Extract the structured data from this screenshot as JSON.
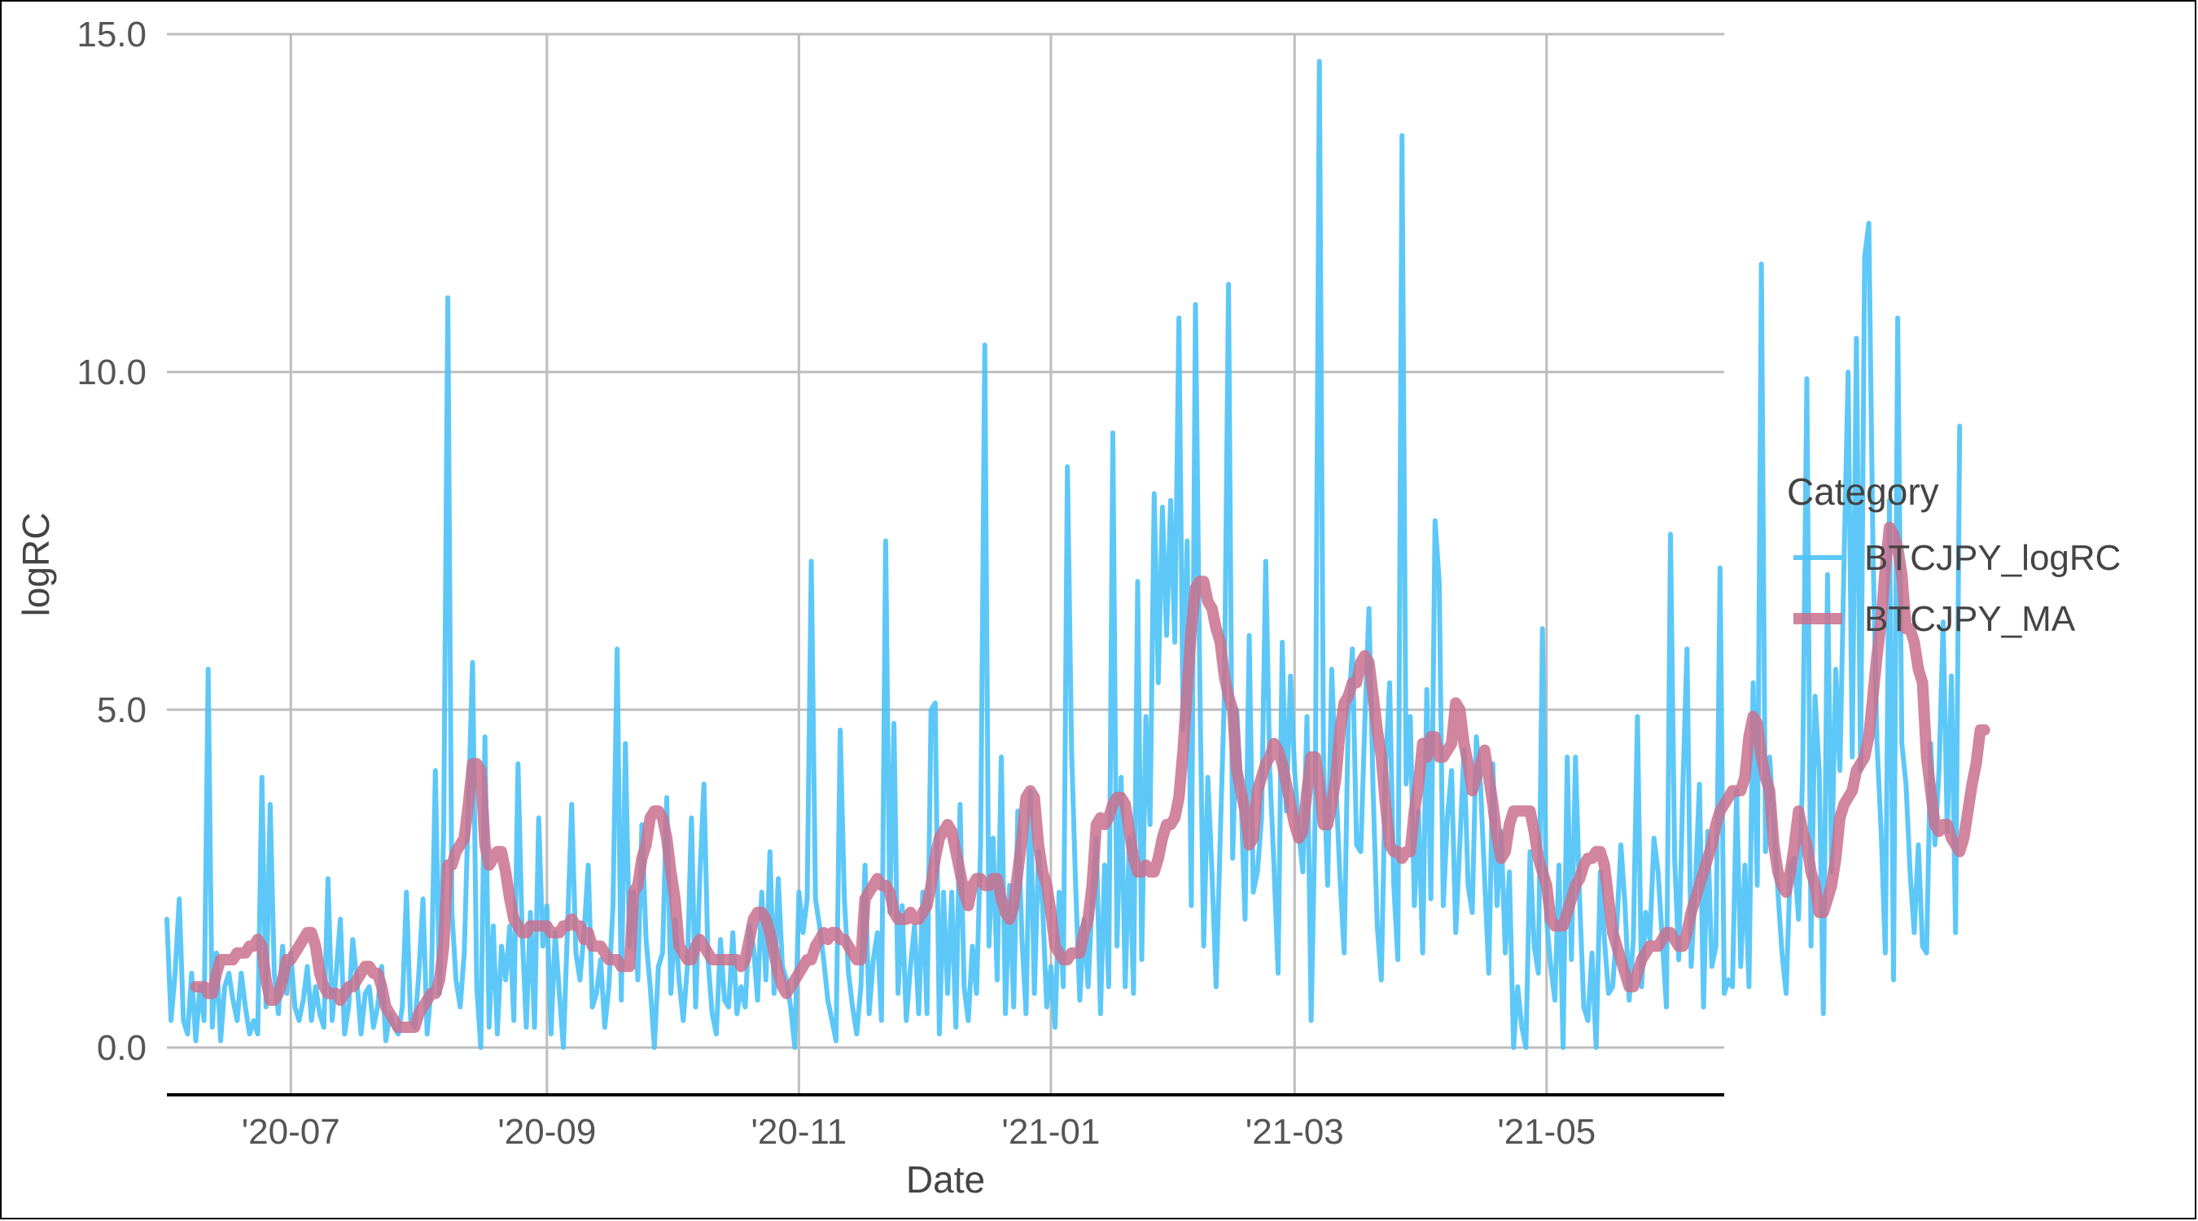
{
  "chart_data": {
    "type": "line",
    "xlabel": "Date",
    "ylabel": "logRC",
    "xlim": [
      "2020-06-01",
      "2021-06-13"
    ],
    "ylim": [
      -0.7,
      15.0
    ],
    "grid": true,
    "legend_position": "right",
    "legend_title": "Category",
    "x_ticks": [
      "2020-07-01",
      "2020-09-01",
      "2020-11-01",
      "2021-01-01",
      "2021-03-01",
      "2021-05-01"
    ],
    "x_tick_labels": [
      "'20-07",
      "'20-09",
      "'20-11",
      "'21-01",
      "'21-03",
      "'21-05"
    ],
    "y_ticks": [
      0.0,
      5.0,
      10.0,
      15.0
    ],
    "y_tick_labels": [
      "0.0",
      "5.0",
      "10.0",
      "15.0"
    ],
    "series": [
      {
        "name": "BTCJPY_logRC",
        "color": "#4FC3F7",
        "line_width": "thin",
        "x_start": "2020-06-01",
        "x_step_days": 1,
        "values": [
          1.9,
          0.4,
          1.1,
          2.2,
          0.4,
          0.2,
          1.1,
          0.1,
          0.9,
          0.4,
          5.6,
          0.3,
          1.4,
          0.1,
          0.9,
          1.1,
          0.7,
          0.4,
          1.1,
          0.6,
          0.2,
          0.4,
          0.2,
          4.0,
          0.6,
          3.6,
          1.1,
          0.5,
          1.5,
          0.8,
          1.4,
          0.6,
          0.4,
          0.7,
          1.2,
          0.4,
          0.9,
          0.5,
          0.3,
          2.5,
          0.4,
          1.1,
          1.9,
          0.2,
          0.6,
          1.6,
          1.0,
          0.2,
          0.8,
          0.9,
          0.3,
          0.6,
          1.2,
          0.1,
          0.5,
          0.3,
          0.2,
          0.6,
          2.3,
          0.4,
          0.3,
          1.1,
          2.2,
          0.2,
          0.9,
          4.1,
          0.8,
          3.2,
          11.1,
          2.0,
          1.0,
          0.6,
          1.4,
          3.6,
          5.7,
          0.9,
          0.0,
          4.6,
          0.3,
          1.8,
          0.2,
          1.5,
          1.0,
          1.8,
          0.4,
          4.2,
          1.7,
          0.3,
          2.0,
          0.3,
          3.4,
          1.5,
          2.1,
          0.2,
          1.7,
          0.8,
          0.0,
          1.8,
          3.6,
          1.4,
          1.0,
          1.7,
          2.7,
          0.6,
          0.8,
          1.3,
          0.3,
          0.9,
          2.1,
          5.9,
          0.7,
          4.5,
          1.5,
          2.3,
          1.0,
          3.3,
          1.6,
          0.9,
          0.0,
          1.2,
          1.4,
          3.7,
          0.8,
          1.9,
          1.0,
          0.4,
          1.2,
          3.4,
          0.6,
          2.5,
          3.9,
          1.3,
          0.5,
          0.2,
          1.6,
          0.7,
          0.6,
          1.7,
          0.5,
          0.9,
          0.6,
          1.8,
          1.5,
          0.7,
          2.3,
          1.0,
          2.9,
          0.8,
          2.5,
          1.2,
          1.0,
          0.6,
          0.0,
          2.3,
          1.7,
          2.2,
          7.2,
          2.2,
          1.8,
          1.3,
          0.7,
          0.4,
          0.1,
          4.7,
          2.2,
          1.1,
          0.6,
          0.2,
          0.9,
          2.7,
          0.5,
          1.3,
          1.7,
          0.4,
          7.5,
          2.0,
          4.8,
          0.8,
          2.1,
          0.4,
          1.2,
          1.8,
          0.5,
          2.3,
          0.5,
          5.0,
          5.1,
          0.2,
          2.3,
          0.8,
          2.3,
          0.3,
          3.6,
          0.9,
          0.4,
          1.5,
          0.8,
          3.0,
          10.4,
          1.5,
          3.1,
          1.0,
          4.3,
          0.5,
          2.4,
          0.6,
          3.5,
          1.6,
          0.5,
          3.8,
          0.8,
          2.9,
          2.1,
          0.6,
          1.2,
          0.3,
          2.3,
          0.9,
          8.6,
          4.4,
          2.4,
          0.7,
          1.9,
          0.9,
          2.2,
          3.1,
          0.5,
          2.7,
          0.9,
          9.1,
          1.5,
          4.0,
          0.9,
          3.1,
          0.8,
          6.9,
          1.3,
          4.9,
          3.3,
          8.2,
          5.4,
          8.0,
          6.1,
          8.1,
          6.0,
          10.8,
          4.7,
          7.5,
          2.1,
          11.0,
          5.6,
          1.5,
          4.0,
          2.6,
          0.9,
          3.1,
          5.2,
          11.3,
          2.8,
          5.0,
          3.8,
          1.9,
          6.1,
          2.3,
          2.6,
          3.4,
          7.2,
          4.1,
          2.7,
          1.1,
          6.0,
          3.5,
          5.5,
          4.1,
          3.2,
          2.6,
          4.9,
          0.4,
          3.5,
          14.6,
          4.2,
          2.4,
          5.6,
          3.9,
          2.5,
          1.4,
          4.9,
          5.9,
          3.0,
          2.9,
          4.8,
          6.5,
          3.8,
          1.8,
          1.0,
          4.1,
          5.4,
          2.4,
          1.3,
          13.5,
          3.9,
          4.9,
          2.1,
          3.5,
          1.4,
          5.3,
          2.2,
          7.8,
          6.9,
          2.1,
          3.4,
          4.1,
          1.7,
          3.0,
          4.4,
          2.4,
          2.0,
          4.6,
          3.9,
          2.5,
          1.1,
          4.2,
          2.1,
          3.2,
          1.4,
          2.6,
          0.0,
          0.9,
          0.3,
          0.0,
          2.9,
          1.5,
          1.1,
          6.2,
          1.9,
          1.2,
          0.7,
          2.7,
          0.0,
          4.3,
          1.3,
          4.3,
          2.2,
          0.6,
          0.4,
          1.4,
          0.0,
          2.6,
          1.6,
          0.8,
          0.9,
          1.8,
          3.0,
          2.1,
          0.7,
          1.6,
          4.9,
          0.9,
          2.0,
          1.6,
          3.1,
          2.6,
          1.6,
          0.6,
          7.6,
          2.8,
          1.3,
          3.9,
          5.9,
          1.2,
          2.4,
          3.9,
          0.6,
          3.2,
          1.2,
          1.5,
          7.1,
          0.8,
          1.0,
          0.9,
          3.8,
          1.2,
          2.7,
          0.9,
          5.4,
          2.4,
          11.6,
          2.9,
          4.3,
          3.3,
          2.3,
          1.4,
          0.8,
          2.7,
          2.8,
          1.9,
          4.1,
          9.9,
          1.5,
          5.2,
          4.1,
          0.5,
          7.0,
          2.6,
          5.6,
          4.1,
          7.2,
          10.0,
          4.3,
          10.5,
          4.1,
          11.7,
          12.2,
          7.4,
          4.5,
          3.2,
          1.4,
          8.1,
          1.0,
          10.8,
          4.5,
          3.9,
          2.6,
          1.7,
          3.0,
          1.5,
          1.4,
          4.5,
          3.0,
          4.1,
          6.3,
          3.2,
          5.5,
          1.7,
          9.2
        ]
      },
      {
        "name": "BTCJPY_MA",
        "color": "#C9708D",
        "line_width": "thick",
        "x_start": "2020-06-08",
        "x_step_days": 1,
        "values": [
          0.9,
          0.9,
          0.9,
          0.8,
          0.8,
          1.1,
          1.3,
          1.3,
          1.3,
          1.3,
          1.4,
          1.4,
          1.4,
          1.5,
          1.5,
          1.6,
          1.5,
          1.0,
          0.7,
          0.7,
          0.8,
          1.0,
          1.3,
          1.3,
          1.4,
          1.5,
          1.6,
          1.7,
          1.7,
          1.5,
          1.1,
          0.9,
          0.8,
          0.8,
          0.8,
          0.7,
          0.8,
          0.9,
          0.9,
          1.0,
          1.1,
          1.2,
          1.2,
          1.1,
          1.1,
          0.9,
          0.6,
          0.5,
          0.4,
          0.3,
          0.3,
          0.3,
          0.3,
          0.3,
          0.5,
          0.6,
          0.7,
          0.8,
          0.8,
          1.0,
          1.5,
          2.7,
          2.7,
          2.9,
          3.0,
          3.1,
          3.6,
          4.2,
          4.2,
          4.1,
          3.0,
          2.7,
          2.8,
          2.9,
          2.9,
          2.6,
          2.2,
          1.9,
          1.8,
          1.7,
          1.7,
          1.8,
          1.8,
          1.8,
          1.8,
          1.8,
          1.7,
          1.7,
          1.7,
          1.8,
          1.8,
          1.9,
          1.8,
          1.8,
          1.6,
          1.7,
          1.5,
          1.5,
          1.5,
          1.4,
          1.3,
          1.3,
          1.3,
          1.2,
          1.2,
          1.2,
          2.3,
          2.4,
          2.8,
          3.0,
          3.4,
          3.5,
          3.5,
          3.4,
          3.1,
          2.6,
          2.2,
          1.5,
          1.4,
          1.3,
          1.3,
          1.5,
          1.6,
          1.5,
          1.4,
          1.3,
          1.3,
          1.3,
          1.3,
          1.3,
          1.3,
          1.3,
          1.2,
          1.3,
          1.6,
          1.9,
          2.0,
          2.0,
          1.9,
          1.7,
          1.4,
          1.1,
          0.9,
          0.8,
          0.9,
          1.0,
          1.1,
          1.2,
          1.3,
          1.3,
          1.5,
          1.6,
          1.7,
          1.6,
          1.7,
          1.7,
          1.6,
          1.6,
          1.5,
          1.4,
          1.3,
          1.3,
          2.2,
          2.3,
          2.4,
          2.5,
          2.4,
          2.4,
          2.3,
          2.0,
          1.9,
          1.9,
          1.9,
          2.0,
          1.9,
          1.9,
          2.0,
          2.1,
          2.4,
          2.8,
          3.1,
          3.2,
          3.3,
          3.2,
          2.9,
          2.6,
          2.3,
          2.1,
          2.4,
          2.5,
          2.5,
          2.4,
          2.4,
          2.5,
          2.5,
          2.2,
          2.0,
          1.9,
          2.1,
          2.6,
          3.1,
          3.7,
          3.8,
          3.7,
          3.0,
          2.6,
          2.4,
          2.0,
          1.5,
          1.4,
          1.3,
          1.3,
          1.4,
          1.4,
          1.4,
          1.7,
          1.9,
          2.4,
          3.3,
          3.4,
          3.3,
          3.4,
          3.6,
          3.7,
          3.7,
          3.6,
          3.2,
          2.8,
          2.6,
          2.6,
          2.7,
          2.6,
          2.6,
          2.8,
          3.1,
          3.3,
          3.3,
          3.4,
          3.7,
          4.4,
          5.3,
          6.2,
          6.8,
          6.9,
          6.9,
          6.6,
          6.5,
          6.2,
          6.0,
          5.5,
          5.2,
          5.0,
          4.1,
          3.8,
          3.5,
          3.0,
          3.1,
          3.8,
          4.0,
          4.2,
          4.3,
          4.5,
          4.4,
          4.2,
          3.9,
          3.6,
          3.3,
          3.1,
          3.2,
          3.8,
          4.3,
          4.3,
          3.9,
          3.3,
          3.3,
          3.6,
          4.0,
          4.7,
          5.1,
          5.2,
          5.4,
          5.4,
          5.7,
          5.8,
          5.7,
          5.2,
          4.7,
          4.3,
          3.6,
          3.0,
          2.9,
          2.9,
          2.8,
          2.9,
          2.9,
          3.5,
          3.9,
          4.5,
          4.3,
          4.6,
          4.6,
          4.3,
          4.3,
          4.4,
          4.5,
          5.1,
          5.0,
          4.5,
          4.2,
          3.8,
          4.0,
          4.2,
          4.4,
          4.0,
          3.6,
          3.1,
          2.8,
          2.9,
          3.3,
          3.5,
          3.5,
          3.5,
          3.5,
          3.5,
          3.2,
          2.8,
          2.6,
          2.4,
          1.9,
          1.8,
          1.8,
          1.8,
          2.0,
          2.2,
          2.4,
          2.5,
          2.7,
          2.8,
          2.8,
          2.9,
          2.9,
          2.7,
          2.2,
          1.7,
          1.5,
          1.3,
          1.1,
          0.9,
          0.9,
          1.1,
          1.3,
          1.4,
          1.5,
          1.5,
          1.5,
          1.6,
          1.7,
          1.7,
          1.6,
          1.5,
          1.5,
          1.7,
          2.0,
          2.2,
          2.4,
          2.6,
          2.8,
          3.0,
          3.3,
          3.5,
          3.6,
          3.7,
          3.8,
          3.8,
          3.8,
          4.0,
          4.6,
          4.9,
          4.8,
          4.3,
          4.0,
          3.8,
          3.0,
          2.6,
          2.4,
          2.3,
          2.6,
          3.0,
          3.5,
          3.2,
          3.0,
          2.6,
          2.4,
          2.0,
          2.0,
          2.2,
          2.4,
          2.8,
          3.4,
          3.6,
          3.7,
          3.8,
          4.1,
          4.2,
          4.3,
          4.6,
          5.2,
          5.8,
          6.3,
          7.1,
          7.7,
          7.6,
          7.4,
          7.0,
          6.2,
          6.2,
          6.0,
          5.6,
          5.4,
          4.3,
          3.8,
          3.3,
          3.2,
          3.3,
          3.3,
          3.1,
          3.0,
          2.9,
          3.1,
          3.5,
          3.9,
          4.2,
          4.7,
          4.7
        ]
      }
    ]
  }
}
